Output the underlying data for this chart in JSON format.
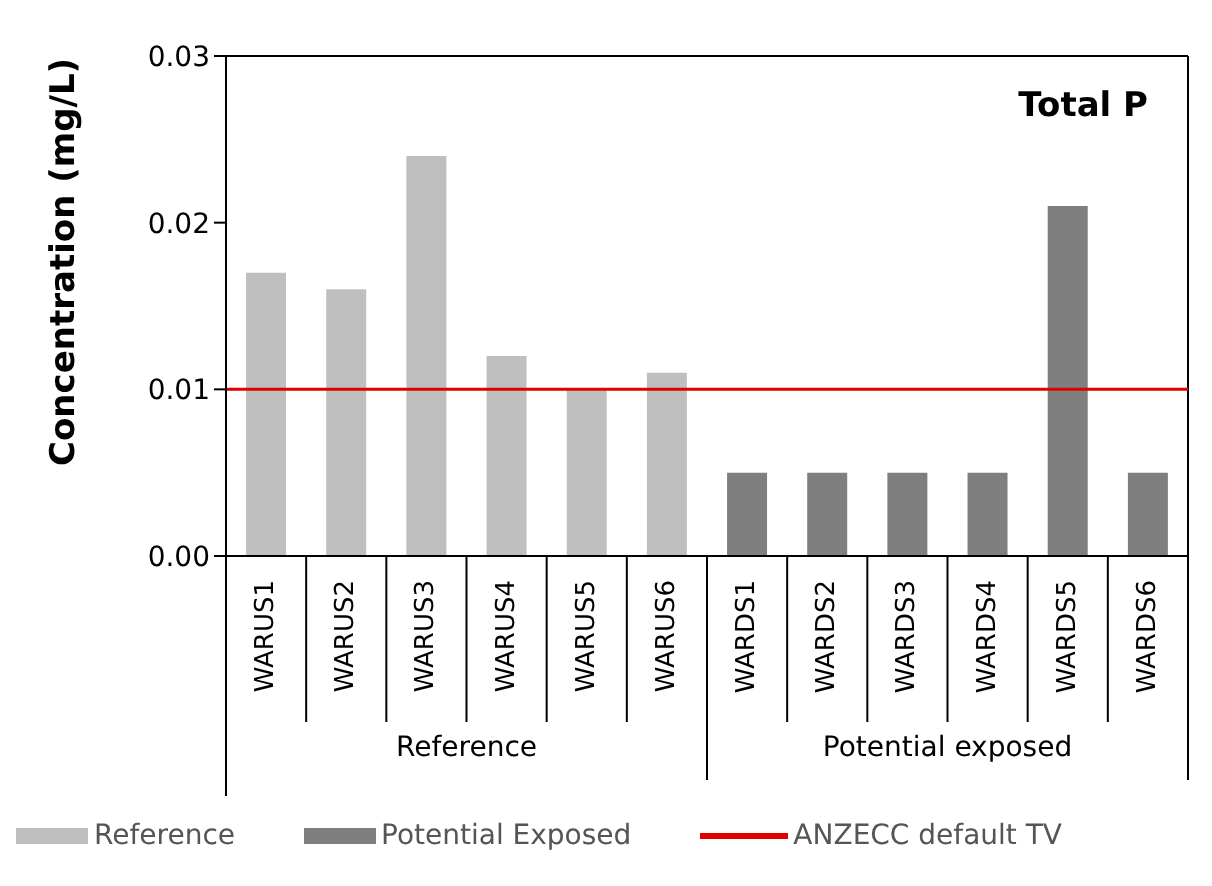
{
  "chart_data": {
    "type": "bar",
    "title": "Total P",
    "ylabel": "Concentration (mg/L)",
    "categories": [
      "WARUS1",
      "WARUS2",
      "WARUS3",
      "WARUS4",
      "WARUS5",
      "WARUS6",
      "WARDS1",
      "WARDS2",
      "WARDS3",
      "WARDS4",
      "WARDS5",
      "WARDS6"
    ],
    "series": [
      {
        "name": "Reference",
        "color": "#bfbfbf",
        "values": [
          0.017,
          0.016,
          0.024,
          0.012,
          0.01,
          0.011,
          null,
          null,
          null,
          null,
          null,
          null
        ]
      },
      {
        "name": "Potential Exposed",
        "color": "#7f7f7f",
        "values": [
          null,
          null,
          null,
          null,
          null,
          null,
          0.005,
          0.005,
          0.005,
          0.005,
          0.021,
          0.005
        ]
      }
    ],
    "stacked": true,
    "ylim": [
      0,
      0.03
    ],
    "yticks": [
      {
        "value": 0,
        "label": "0.00"
      },
      {
        "value": 0.01,
        "label": "0.01"
      },
      {
        "value": 0.02,
        "label": "0.02"
      },
      {
        "value": 0.03,
        "label": "0.03"
      }
    ],
    "ref_lines": [
      {
        "axis": "y",
        "value": 0.01,
        "label": "ANZECC default TV",
        "color": "#e00000"
      }
    ],
    "annotations": [
      "Reference",
      "Potential exposed"
    ],
    "legend": "bottom",
    "grid": false
  }
}
